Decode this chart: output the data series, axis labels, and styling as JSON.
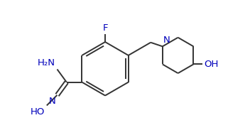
{
  "bg_color": "#ffffff",
  "line_color": "#333333",
  "atom_color": "#0000bb",
  "bond_width": 1.4,
  "font_size": 9.5,
  "figsize": [
    3.52,
    1.97
  ],
  "dpi": 100,
  "xlim": [
    0,
    10
  ],
  "ylim": [
    0,
    5.6
  ]
}
